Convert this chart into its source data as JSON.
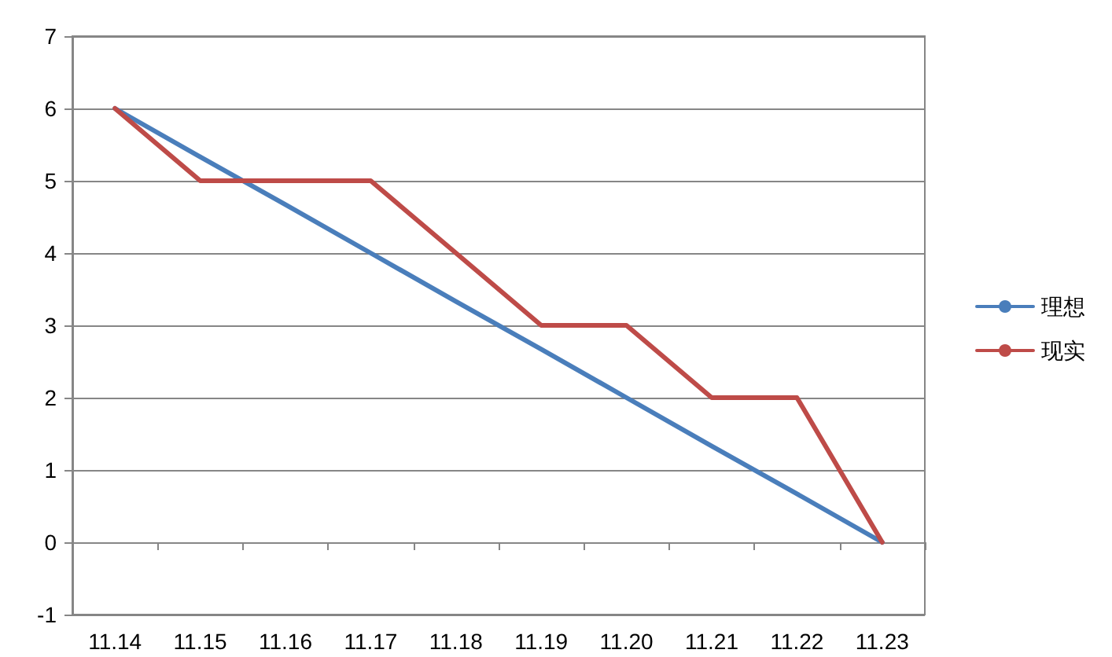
{
  "chart_data": {
    "type": "line",
    "categories": [
      "11.14",
      "11.15",
      "11.16",
      "11.17",
      "11.18",
      "11.19",
      "11.20",
      "11.21",
      "11.22",
      "11.23"
    ],
    "series": [
      {
        "name": "理想",
        "color": "#4a7ebb",
        "values": [
          6,
          5.33,
          4.67,
          4,
          3.33,
          2.67,
          2,
          1.33,
          0.67,
          0
        ]
      },
      {
        "name": "现实",
        "color": "#be4b48",
        "values": [
          6,
          5,
          5,
          5,
          4,
          3,
          3,
          2,
          2,
          0
        ]
      }
    ],
    "ylim": [
      -1,
      7
    ],
    "yticks": [
      -1,
      0,
      1,
      2,
      3,
      4,
      5,
      6,
      7
    ],
    "grid": "y",
    "legend": "right",
    "marker": "none",
    "line_style": "solid"
  }
}
